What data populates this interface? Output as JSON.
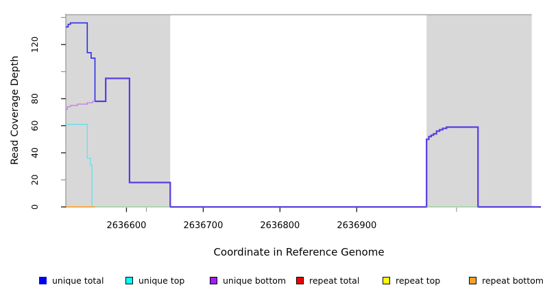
{
  "chart_data": {
    "type": "line",
    "subtype": "step-coverage",
    "title": "",
    "xlabel": "Coordinate in Reference Genome",
    "ylabel": "Read Coverage Depth",
    "xlim": [
      2636521,
      2637140
    ],
    "ylim": [
      0,
      142
    ],
    "grid": false,
    "region_fill": "#d8d8d8",
    "top_line": {
      "from": 2636521,
      "to": 2637128,
      "value": 142,
      "color": "#a6a6a6"
    },
    "shaded_regions": [
      {
        "name": "repeat-region-left",
        "from": 2636521,
        "to": 2636657
      },
      {
        "name": "repeat-region-right",
        "from": 2636991,
        "to": 2637128
      }
    ],
    "y_axis": {
      "line_color": "#949494",
      "ticks": [
        {
          "v": 0,
          "label": "0",
          "color": "#1a1a1a"
        },
        {
          "v": 20,
          "label": "20",
          "color": "#969696"
        },
        {
          "v": 40,
          "label": "40",
          "color": "#1a1a1a"
        },
        {
          "v": 60,
          "label": "60",
          "color": "#1a1a1a"
        },
        {
          "v": 80,
          "label": "80",
          "color": "#1a1a1a"
        },
        {
          "v": 100,
          "label": "",
          "color": "#969696"
        },
        {
          "v": 120,
          "label": "120",
          "color": "#1a1a1a"
        },
        {
          "v": 140,
          "label": "",
          "color": "#969696"
        }
      ]
    },
    "x_axis": {
      "ticks": [
        {
          "v": 2636600,
          "label": "2636600"
        },
        {
          "v": 2636700,
          "label": "2636700"
        },
        {
          "v": 2636800,
          "label": "2636800"
        },
        {
          "v": 2636900,
          "label": "2636900"
        }
      ],
      "minor_gray_ticks": [
        2636626,
        2637030
      ]
    },
    "series": [
      {
        "name": "unique total",
        "segments": [
          {
            "color": "#2b2be8",
            "width": 1.6,
            "points": [
              [
                2636521,
                133
              ],
              [
                2636524,
                133
              ],
              [
                2636524,
                135
              ],
              [
                2636527,
                135
              ],
              [
                2636527,
                136
              ],
              [
                2636549,
                136
              ],
              [
                2636549,
                114
              ],
              [
                2636554,
                114
              ],
              [
                2636554,
                110
              ],
              [
                2636559,
                110
              ],
              [
                2636559,
                78
              ],
              [
                2636573,
                78
              ],
              [
                2636573,
                95
              ],
              [
                2636604,
                95
              ],
              [
                2636604,
                18
              ],
              [
                2636657,
                18
              ],
              [
                2636657,
                0
              ],
              [
                2636991,
                0
              ],
              [
                2636991,
                50
              ],
              [
                2636994,
                50
              ],
              [
                2636994,
                52
              ],
              [
                2636997,
                52
              ],
              [
                2636997,
                53
              ],
              [
                2637000,
                53
              ],
              [
                2637000,
                54
              ],
              [
                2637004,
                54
              ],
              [
                2637004,
                56
              ],
              [
                2637008,
                56
              ],
              [
                2637008,
                57
              ],
              [
                2637012,
                57
              ],
              [
                2637012,
                58
              ],
              [
                2637017,
                58
              ],
              [
                2637017,
                59
              ],
              [
                2637058,
                59
              ],
              [
                2637058,
                0
              ],
              [
                2637140,
                0
              ]
            ]
          }
        ]
      },
      {
        "name": "unique bottom",
        "segments": [
          {
            "color": "#c07fe8",
            "width": 1.4,
            "points": [
              [
                2636521,
                72
              ],
              [
                2636523,
                72
              ],
              [
                2636523,
                74
              ],
              [
                2636527,
                74
              ],
              [
                2636527,
                75
              ],
              [
                2636536,
                75
              ],
              [
                2636536,
                76
              ],
              [
                2636549,
                76
              ],
              [
                2636549,
                77
              ],
              [
                2636556,
                77
              ],
              [
                2636556,
                78
              ],
              [
                2636559,
                78
              ]
            ]
          },
          {
            "color": "#5a3be0",
            "width": 2.2,
            "points": [
              [
                2636559,
                78
              ],
              [
                2636573,
                78
              ],
              [
                2636573,
                95
              ],
              [
                2636604,
                95
              ],
              [
                2636604,
                18
              ],
              [
                2636657,
                18
              ],
              [
                2636657,
                0
              ],
              [
                2636991,
                0
              ],
              [
                2636991,
                50
              ],
              [
                2636994,
                50
              ],
              [
                2636994,
                52
              ],
              [
                2636997,
                52
              ],
              [
                2636997,
                53
              ],
              [
                2637000,
                53
              ],
              [
                2637000,
                54
              ],
              [
                2637004,
                54
              ],
              [
                2637004,
                56
              ],
              [
                2637008,
                56
              ],
              [
                2637008,
                57
              ],
              [
                2637012,
                57
              ],
              [
                2637012,
                58
              ],
              [
                2637017,
                58
              ],
              [
                2637017,
                59
              ],
              [
                2637058,
                59
              ],
              [
                2637058,
                0
              ],
              [
                2637140,
                0
              ]
            ]
          }
        ]
      },
      {
        "name": "unique top",
        "segments": [
          {
            "color": "#63e3ea",
            "width": 1.4,
            "points": [
              [
                2636521,
                61
              ],
              [
                2636549,
                61
              ],
              [
                2636549,
                36
              ],
              [
                2636553,
                36
              ],
              [
                2636553,
                31
              ],
              [
                2636555,
                31
              ],
              [
                2636555,
                0
              ]
            ]
          }
        ]
      },
      {
        "name": "repeat total",
        "segments": []
      },
      {
        "name": "repeat top",
        "segments": []
      },
      {
        "name": "repeat bottom",
        "segments": [
          {
            "color": "#ffa020",
            "width": 1.7,
            "points": [
              [
                2636521,
                0
              ],
              [
                2636559,
                0
              ]
            ]
          }
        ]
      },
      {
        "name": "baseline",
        "segments": [
          {
            "color": "#8ccf8c",
            "width": 1.2,
            "points": [
              [
                2636559,
                0
              ],
              [
                2636657,
                0
              ]
            ]
          },
          {
            "color": "#8ccf8c",
            "width": 1.2,
            "points": [
              [
                2636991,
                0
              ],
              [
                2637058,
                0
              ]
            ]
          }
        ]
      }
    ],
    "legend": {
      "position": "bottom",
      "entries": [
        {
          "label": "unique total",
          "fill": "#0000f0",
          "border": "#0000f0"
        },
        {
          "label": "unique top",
          "fill": "#00ffff",
          "border": "#000000"
        },
        {
          "label": "unique bottom",
          "fill": "#a020f0",
          "border": "#000000"
        },
        {
          "label": "repeat total",
          "fill": "#ee0000",
          "border": "#000000"
        },
        {
          "label": "repeat top",
          "fill": "#ffff00",
          "border": "#000000"
        },
        {
          "label": "repeat bottom",
          "fill": "#ffa020",
          "border": "#000000"
        }
      ]
    }
  }
}
